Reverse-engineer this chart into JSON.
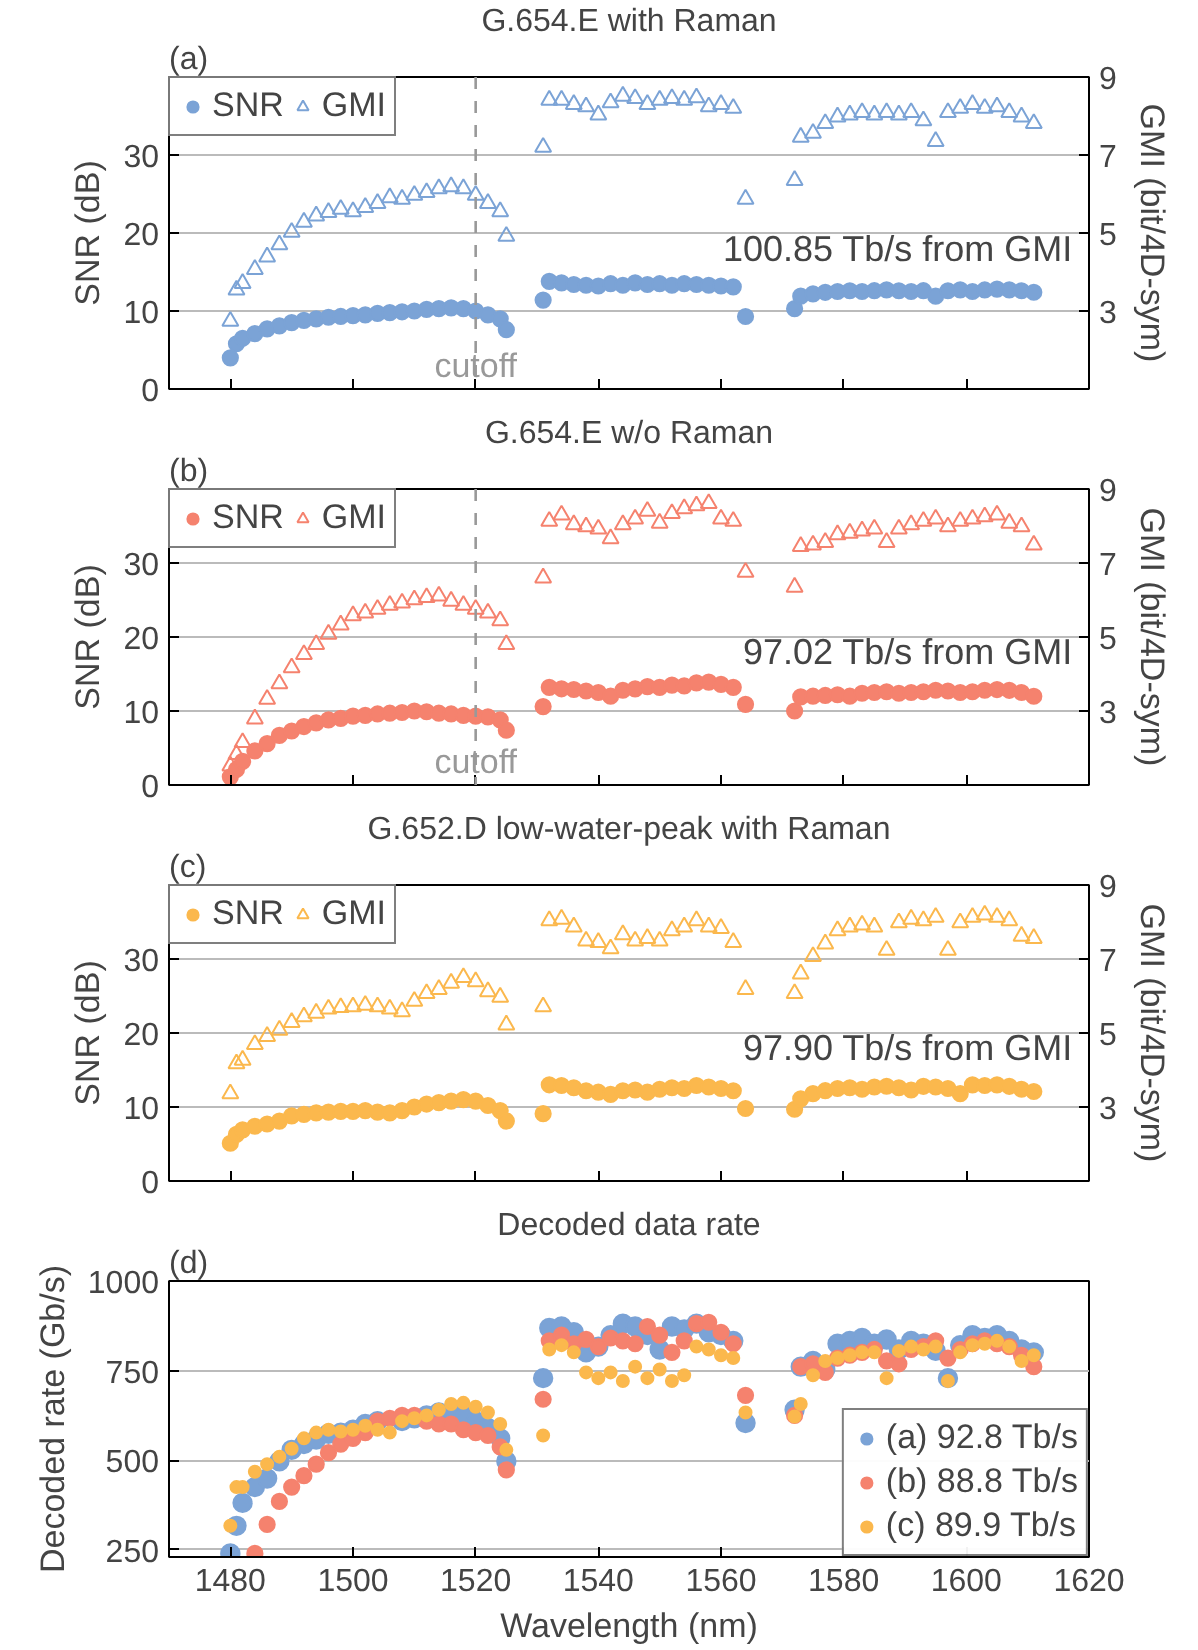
{
  "chart_data": [
    {
      "type": "scatter",
      "title": "G.654.E with Raman",
      "ylabel": "SNR (dB)",
      "y2label": "GMI (bit/4D-sym)",
      "annotations": [
        "(a)",
        "100.85 Tb/s from GMI"
      ],
      "x": [
        1480,
        1481,
        1482,
        1484,
        1486,
        1488,
        1490,
        1492,
        1494,
        1496,
        1498,
        1500,
        1502,
        1504,
        1506,
        1508,
        1510,
        1512,
        1514,
        1516,
        1518,
        1520,
        1522,
        1524,
        1525,
        1531,
        1532,
        1534,
        1536,
        1538,
        1540,
        1542,
        1544,
        1546,
        1548,
        1550,
        1552,
        1554,
        1556,
        1558,
        1560,
        1562,
        1564,
        1572,
        1573,
        1575,
        1577,
        1579,
        1581,
        1583,
        1585,
        1587,
        1589,
        1591,
        1593,
        1595,
        1597,
        1599,
        1601,
        1603,
        1605,
        1607,
        1609,
        1611
      ],
      "xlim": [
        1470,
        1620
      ],
      "xticks": [
        1480,
        1500,
        1520,
        1540,
        1560,
        1580,
        1600,
        1620
      ],
      "ylim": [
        0,
        40
      ],
      "yticks": [
        0,
        10,
        20,
        30
      ],
      "y2lim": [
        1,
        9
      ],
      "y2ticks": [
        3,
        5,
        7,
        9
      ],
      "tick_labels": "y",
      "grid": "y",
      "legend": "top left",
      "ref_lines": [
        {
          "axis": "x",
          "value": 1520,
          "label": "cutoff",
          "color": "#999999",
          "line_style": "dashed"
        }
      ],
      "series": [
        {
          "name": "SNR",
          "color": "#7ba3d6",
          "marker": "circle",
          "values": [
            4.0,
            5.8,
            6.5,
            7.1,
            7.7,
            8.1,
            8.5,
            8.8,
            9.0,
            9.2,
            9.3,
            9.4,
            9.5,
            9.7,
            9.8,
            9.9,
            10.0,
            10.2,
            10.3,
            10.4,
            10.3,
            10.0,
            9.5,
            9.0,
            7.6,
            11.4,
            13.8,
            13.6,
            13.4,
            13.3,
            13.2,
            13.5,
            13.3,
            13.6,
            13.4,
            13.5,
            13.3,
            13.5,
            13.4,
            13.3,
            13.2,
            13.1,
            9.3,
            10.3,
            11.9,
            12.2,
            12.4,
            12.5,
            12.6,
            12.5,
            12.6,
            12.7,
            12.6,
            12.5,
            12.6,
            11.9,
            12.6,
            12.7,
            12.5,
            12.7,
            12.8,
            12.7,
            12.6,
            12.4
          ]
        },
        {
          "name": "GMI",
          "color": "#7ba3d6",
          "marker": "triangle",
          "axis": "y2",
          "values": [
            2.74,
            3.54,
            3.71,
            4.07,
            4.39,
            4.7,
            5.02,
            5.28,
            5.44,
            5.53,
            5.61,
            5.55,
            5.66,
            5.76,
            5.91,
            5.87,
            5.97,
            6.04,
            6.14,
            6.19,
            6.14,
            5.97,
            5.76,
            5.55,
            4.92,
            7.2,
            8.41,
            8.41,
            8.3,
            8.24,
            8.03,
            8.34,
            8.51,
            8.45,
            8.3,
            8.41,
            8.45,
            8.41,
            8.47,
            8.24,
            8.3,
            8.2,
            5.87,
            6.35,
            7.46,
            7.56,
            7.81,
            7.98,
            8.03,
            8.09,
            8.03,
            8.09,
            8.03,
            8.09,
            7.88,
            7.35,
            8.09,
            8.2,
            8.3,
            8.2,
            8.24,
            8.09,
            7.98,
            7.81
          ]
        }
      ]
    },
    {
      "type": "scatter",
      "title": "G.654.E w/o Raman",
      "ylabel": "SNR (dB)",
      "y2label": "GMI (bit/4D-sym)",
      "annotations": [
        "(b)",
        "97.02 Tb/s from GMI"
      ],
      "x": [
        1480,
        1481,
        1482,
        1484,
        1486,
        1488,
        1490,
        1492,
        1494,
        1496,
        1498,
        1500,
        1502,
        1504,
        1506,
        1508,
        1510,
        1512,
        1514,
        1516,
        1518,
        1520,
        1522,
        1524,
        1525,
        1531,
        1532,
        1534,
        1536,
        1538,
        1540,
        1542,
        1544,
        1546,
        1548,
        1550,
        1552,
        1554,
        1556,
        1558,
        1560,
        1562,
        1564,
        1572,
        1573,
        1575,
        1577,
        1579,
        1581,
        1583,
        1585,
        1587,
        1589,
        1591,
        1593,
        1595,
        1597,
        1599,
        1601,
        1603,
        1605,
        1607,
        1609,
        1611
      ],
      "xlim": [
        1470,
        1620
      ],
      "xticks": [
        1480,
        1500,
        1520,
        1540,
        1560,
        1580,
        1600,
        1620
      ],
      "ylim": [
        0,
        40
      ],
      "yticks": [
        0,
        10,
        20,
        30
      ],
      "y2lim": [
        1,
        9
      ],
      "y2ticks": [
        3,
        5,
        7,
        9
      ],
      "tick_labels": "y",
      "grid": "y",
      "legend": "top left",
      "ref_lines": [
        {
          "axis": "x",
          "value": 1520,
          "label": "cutoff",
          "color": "#999999",
          "line_style": "dashed"
        }
      ],
      "series": [
        {
          "name": "SNR",
          "color": "#f5826e",
          "marker": "circle",
          "values": [
            1.1,
            2.1,
            3.2,
            4.6,
            5.6,
            6.7,
            7.3,
            7.9,
            8.4,
            8.8,
            9.0,
            9.3,
            9.4,
            9.6,
            9.7,
            9.8,
            10.0,
            9.9,
            9.7,
            9.6,
            9.4,
            9.3,
            9.2,
            8.8,
            7.4,
            10.6,
            13.2,
            13.0,
            12.9,
            12.7,
            12.5,
            12.0,
            12.8,
            13.0,
            13.3,
            13.2,
            13.5,
            13.4,
            13.8,
            13.9,
            13.6,
            13.2,
            10.9,
            10.0,
            11.9,
            12.0,
            12.1,
            12.2,
            12.0,
            12.4,
            12.5,
            12.6,
            12.4,
            12.5,
            12.6,
            12.8,
            12.7,
            12.5,
            12.6,
            12.8,
            12.9,
            12.8,
            12.5,
            12.0
          ]
        },
        {
          "name": "GMI",
          "color": "#f5826e",
          "marker": "triangle",
          "axis": "y2",
          "values": [
            1.52,
            1.83,
            2.15,
            2.79,
            3.32,
            3.74,
            4.17,
            4.53,
            4.8,
            5.08,
            5.33,
            5.58,
            5.65,
            5.75,
            5.86,
            5.92,
            6.01,
            6.07,
            6.11,
            5.97,
            5.86,
            5.75,
            5.65,
            5.44,
            4.8,
            6.6,
            8.13,
            8.3,
            8.04,
            7.98,
            7.92,
            7.66,
            8.04,
            8.19,
            8.4,
            8.08,
            8.34,
            8.47,
            8.55,
            8.61,
            8.19,
            8.13,
            6.75,
            6.35,
            7.45,
            7.49,
            7.56,
            7.77,
            7.81,
            7.87,
            7.92,
            7.56,
            7.92,
            8.04,
            8.13,
            8.19,
            7.98,
            8.13,
            8.19,
            8.25,
            8.3,
            8.08,
            7.98,
            7.49
          ]
        }
      ]
    },
    {
      "type": "scatter",
      "title": "G.652.D low-water-peak with Raman",
      "ylabel": "SNR (dB)",
      "y2label": "GMI (bit/4D-sym)",
      "annotations": [
        "(c)",
        "97.90 Tb/s from GMI"
      ],
      "x": [
        1480,
        1481,
        1482,
        1484,
        1486,
        1488,
        1490,
        1492,
        1494,
        1496,
        1498,
        1500,
        1502,
        1504,
        1506,
        1508,
        1510,
        1512,
        1514,
        1516,
        1518,
        1520,
        1522,
        1524,
        1525,
        1531,
        1532,
        1534,
        1536,
        1538,
        1540,
        1542,
        1544,
        1546,
        1548,
        1550,
        1552,
        1554,
        1556,
        1558,
        1560,
        1562,
        1564,
        1572,
        1573,
        1575,
        1577,
        1579,
        1581,
        1583,
        1585,
        1587,
        1589,
        1591,
        1593,
        1595,
        1597,
        1599,
        1601,
        1603,
        1605,
        1607,
        1609,
        1611
      ],
      "xlim": [
        1470,
        1620
      ],
      "xticks": [
        1480,
        1500,
        1520,
        1540,
        1560,
        1580,
        1600,
        1620
      ],
      "ylim": [
        0,
        40
      ],
      "yticks": [
        0,
        10,
        20,
        30
      ],
      "y2lim": [
        1,
        9
      ],
      "y2ticks": [
        3,
        5,
        7,
        9
      ],
      "tick_labels": "y",
      "grid": "y",
      "legend": "top left",
      "series": [
        {
          "name": "SNR",
          "color": "#fbb84d",
          "marker": "circle",
          "values": [
            5.1,
            6.3,
            6.9,
            7.4,
            7.7,
            8.1,
            8.8,
            9.0,
            9.2,
            9.3,
            9.4,
            9.4,
            9.5,
            9.3,
            9.2,
            9.5,
            10.0,
            10.4,
            10.6,
            10.8,
            11.0,
            10.8,
            10.2,
            9.5,
            8.1,
            9.1,
            13.0,
            12.9,
            12.6,
            12.2,
            12.0,
            11.7,
            12.2,
            12.3,
            12.0,
            12.4,
            12.6,
            12.5,
            12.9,
            12.7,
            12.5,
            12.2,
            9.8,
            9.7,
            11.1,
            11.8,
            12.2,
            12.5,
            12.6,
            12.4,
            12.7,
            12.8,
            12.6,
            12.3,
            12.8,
            12.7,
            12.5,
            11.8,
            13.0,
            12.9,
            13.0,
            12.8,
            12.4,
            12.1
          ]
        },
        {
          "name": "GMI",
          "color": "#fbb84d",
          "marker": "triangle",
          "axis": "y2",
          "values": [
            3.36,
            4.17,
            4.27,
            4.69,
            4.91,
            5.08,
            5.29,
            5.44,
            5.54,
            5.65,
            5.69,
            5.71,
            5.75,
            5.71,
            5.65,
            5.58,
            5.86,
            6.07,
            6.18,
            6.35,
            6.5,
            6.39,
            6.12,
            5.97,
            5.22,
            5.71,
            8.04,
            8.08,
            7.87,
            7.49,
            7.45,
            7.28,
            7.66,
            7.49,
            7.56,
            7.49,
            7.77,
            7.87,
            8.04,
            7.87,
            7.83,
            7.45,
            6.18,
            6.07,
            6.6,
            7.07,
            7.41,
            7.77,
            7.87,
            7.92,
            7.87,
            7.24,
            7.98,
            8.08,
            8.04,
            8.13,
            7.24,
            7.98,
            8.13,
            8.19,
            8.13,
            8.04,
            7.62,
            7.56
          ]
        }
      ]
    },
    {
      "type": "scatter",
      "title": "Decoded data rate",
      "xlabel": "Wavelength (nm)",
      "ylabel": "Decoded rate (Gb/s)",
      "annotations": [
        "(d)"
      ],
      "x": [
        1480,
        1481,
        1482,
        1484,
        1486,
        1488,
        1490,
        1492,
        1494,
        1496,
        1498,
        1500,
        1502,
        1504,
        1506,
        1508,
        1510,
        1512,
        1514,
        1516,
        1518,
        1520,
        1522,
        1524,
        1525,
        1531,
        1532,
        1534,
        1536,
        1538,
        1540,
        1542,
        1544,
        1546,
        1548,
        1550,
        1552,
        1554,
        1556,
        1558,
        1560,
        1562,
        1564,
        1572,
        1573,
        1575,
        1577,
        1579,
        1581,
        1583,
        1585,
        1587,
        1589,
        1591,
        1593,
        1595,
        1597,
        1599,
        1601,
        1603,
        1605,
        1607,
        1609,
        1611
      ],
      "xlim": [
        1470,
        1620
      ],
      "xticks": [
        1480,
        1500,
        1520,
        1540,
        1560,
        1580,
        1600,
        1620
      ],
      "ylim": [
        230,
        1000
      ],
      "yticks": [
        250,
        500,
        750,
        1000
      ],
      "grid": "y",
      "legend": "bottom right",
      "series": [
        {
          "name": "(a) 92.8 Tb/s",
          "color": "#7ba3d6",
          "marker": "circle",
          "values": [
            240,
            317,
            381,
            425,
            449,
            497,
            529,
            545,
            558,
            574,
            577,
            585,
            601,
            609,
            null,
            609,
            617,
            625,
            633,
            633,
            625,
            609,
            590,
            561,
            497,
            729,
            869,
            873,
            857,
            801,
            817,
            849,
            881,
            873,
            849,
            809,
            873,
            865,
            881,
            857,
            849,
            833,
            604,
            641,
            761,
            777,
            753,
            825,
            833,
            841,
            825,
            837,
            809,
            833,
            825,
            805,
            729,
            821,
            849,
            841,
            849,
            833,
            809,
            801
          ]
        },
        {
          "name": "(b) 88.8 Tb/s",
          "color": "#f5826e",
          "marker": "circle",
          "values": [
            null,
            null,
            null,
            240,
            321,
            385,
            425,
            457,
            489,
            521,
            545,
            561,
            577,
            609,
            617,
            625,
            625,
            609,
            601,
            601,
            585,
            577,
            569,
            537,
            473,
            670,
            833,
            849,
            825,
            837,
            817,
            841,
            833,
            825,
            873,
            849,
            801,
            833,
            881,
            885,
            857,
            825,
            681,
            625,
            761,
            769,
            745,
            785,
            793,
            801,
            809,
            777,
            769,
            809,
            817,
            833,
            785,
            809,
            825,
            833,
            825,
            817,
            793,
            761
          ]
        },
        {
          "name": "(c) 89.9 Tb/s",
          "color": "#fbb84d",
          "marker": "circle",
          "values": [
            317,
            425,
            425,
            468,
            489,
            510,
            532,
            561,
            577,
            585,
            580,
            585,
            596,
            585,
            577,
            609,
            617,
            625,
            641,
            657,
            660,
            649,
            633,
            601,
            529,
            569,
            809,
            821,
            801,
            745,
            729,
            745,
            721,
            761,
            729,
            753,
            721,
            737,
            817,
            809,
            793,
            785,
            633,
            622,
            657,
            737,
            777,
            785,
            793,
            801,
            801,
            729,
            805,
            817,
            809,
            817,
            721,
            801,
            821,
            825,
            833,
            817,
            777,
            793
          ]
        }
      ]
    }
  ]
}
